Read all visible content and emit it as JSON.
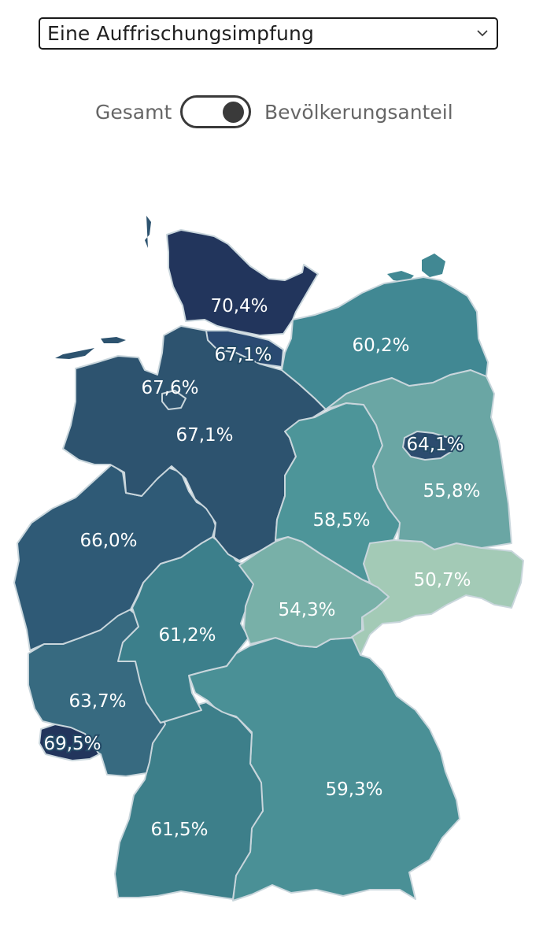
{
  "dropdown": {
    "selected": "Eine Auffrischungsimpfung"
  },
  "toggle": {
    "left_label": "Gesamt",
    "right_label": "Bevölkerungsanteil",
    "state": "right"
  },
  "map": {
    "states": [
      {
        "id": "sh",
        "value": "70,4%",
        "color": "#22355c"
      },
      {
        "id": "hh",
        "value": "67,1%",
        "color": "#2a4a72"
      },
      {
        "id": "ni",
        "value": "67,6%",
        "color": "#2d536f"
      },
      {
        "id": "hb",
        "value": "67,1%",
        "color": "#2d536f"
      },
      {
        "id": "mv",
        "value": "60,2%",
        "color": "#418893"
      },
      {
        "id": "be",
        "value": "64,1%",
        "color": "#2c4c6f"
      },
      {
        "id": "bb",
        "value": "55,8%",
        "color": "#6aa6a4"
      },
      {
        "id": "st",
        "value": "58,5%",
        "color": "#4d9599"
      },
      {
        "id": "nw",
        "value": "66,0%",
        "color": "#2f5a76"
      },
      {
        "id": "he",
        "value": "61,2%",
        "color": "#3c7f8b"
      },
      {
        "id": "th",
        "value": "54,3%",
        "color": "#78b0a8"
      },
      {
        "id": "sn",
        "value": "50,7%",
        "color": "#a3cab6"
      },
      {
        "id": "rp",
        "value": "63,7%",
        "color": "#376a80"
      },
      {
        "id": "sl",
        "value": "69,5%",
        "color": "#22355c"
      },
      {
        "id": "by",
        "value": "59,3%",
        "color": "#4a9096"
      },
      {
        "id": "bw",
        "value": "61,5%",
        "color": "#3d7f8a"
      }
    ]
  }
}
